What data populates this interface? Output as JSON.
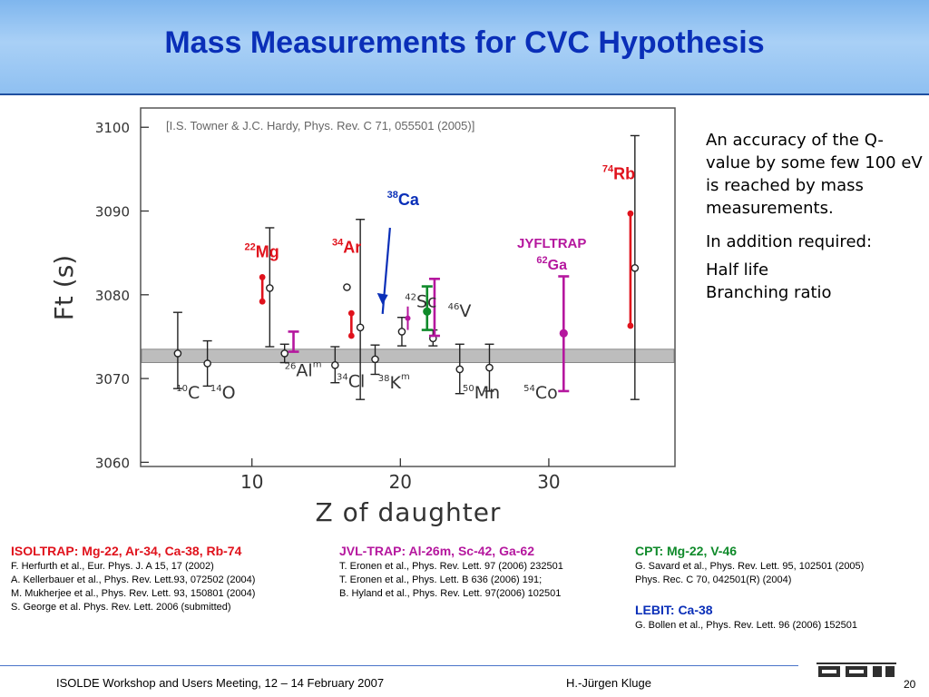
{
  "title": "Mass Measurements for CVC Hypothesis",
  "chart_data": {
    "type": "scatter",
    "citation": "[I.S. Towner & J.C. Hardy, Phys. Rev. C 71, 055501 (2005)]",
    "xlabel": "Z of daughter",
    "ylabel": "Ft (s)",
    "xlim": [
      2.5,
      38.5
    ],
    "ylim": [
      3059.5,
      3102.3
    ],
    "xticks": [
      10,
      20,
      30
    ],
    "yticks": [
      3060,
      3070,
      3080,
      3090,
      3100
    ],
    "band": {
      "y_low": 3071.9,
      "y_high": 3073.5,
      "color": "#bdbdbd"
    },
    "points": [
      {
        "x": 5,
        "y": 3073,
        "err_low": 3068.8,
        "err_high": 3077.9,
        "color": "#000000",
        "style": "open"
      },
      {
        "x": 7,
        "y": 3071.8,
        "err_low": 3069.1,
        "err_high": 3074.5,
        "color": "#000000",
        "style": "open"
      },
      {
        "x": 11.2,
        "y": 3080.8,
        "err_low": 3073.8,
        "err_high": 3088.0,
        "color": "#000000",
        "style": "open"
      },
      {
        "x": 12.2,
        "y": 3073,
        "err_low": 3071.9,
        "err_high": 3074.1,
        "color": "#000000",
        "style": "open"
      },
      {
        "x": 15.6,
        "y": 3071.6,
        "err_low": 3069.5,
        "err_high": 3073.8,
        "color": "#000000",
        "style": "open"
      },
      {
        "x": 16.4,
        "y": 3080.9,
        "err_low": 3080.9,
        "err_high": 3080.9,
        "color": "#000000",
        "style": "open"
      },
      {
        "x": 17.3,
        "y": 3076.1,
        "err_low": 3067.5,
        "err_high": 3089.0,
        "color": "#000000",
        "style": "open"
      },
      {
        "x": 18.3,
        "y": 3072.3,
        "err_low": 3070.5,
        "err_high": 3074.0,
        "color": "#000000",
        "style": "open"
      },
      {
        "x": 20.1,
        "y": 3075.6,
        "err_low": 3073.9,
        "err_high": 3077.3,
        "color": "#000000",
        "style": "open"
      },
      {
        "x": 22.2,
        "y": 3074.8,
        "err_low": 3073.9,
        "err_high": 3075.8,
        "color": "#000000",
        "style": "open"
      },
      {
        "x": 24,
        "y": 3071.1,
        "err_low": 3068.2,
        "err_high": 3074.1,
        "color": "#000000",
        "style": "open"
      },
      {
        "x": 26,
        "y": 3071.3,
        "err_low": 3068.5,
        "err_high": 3074.1,
        "color": "#000000",
        "style": "open"
      },
      {
        "x": 35.8,
        "y": 3083.2,
        "err_low": 3067.5,
        "err_high": 3099.0,
        "color": "#000000",
        "style": "open"
      },
      {
        "x": 10.7,
        "y": 3080.9,
        "err_low": 3079.2,
        "err_high": 3082.1,
        "color": "#e0121c",
        "style": "bar"
      },
      {
        "x": 16.7,
        "y": 3076.5,
        "err_low": 3075.1,
        "err_high": 3077.8,
        "color": "#e0121c",
        "style": "bar"
      },
      {
        "x": 35.5,
        "y": 3083.1,
        "err_low": 3076.3,
        "err_high": 3089.7,
        "color": "#e0121c",
        "style": "bar"
      },
      {
        "x": 12.8,
        "y": 3074.3,
        "err_low": 3073.2,
        "err_high": 3075.6,
        "color": "#b5179e",
        "style": "bar"
      },
      {
        "x": 22.3,
        "y": 3078.9,
        "err_low": 3075.1,
        "err_high": 3081.9,
        "color": "#b5179e",
        "style": "bar"
      },
      {
        "x": 31,
        "y": 3075.4,
        "err_low": 3068.5,
        "err_high": 3082.2,
        "color": "#b5179e",
        "style": "bar",
        "marker": true
      },
      {
        "x": 20.5,
        "y": 3077.2,
        "err_low": 3075.8,
        "err_high": 3078.6,
        "color": "#b5179e",
        "style": "dot"
      },
      {
        "x": 21.8,
        "y": 3078,
        "err_low": 3075.8,
        "err_high": 3081.0,
        "color": "#0f8a2a",
        "style": "bar",
        "marker": true
      }
    ],
    "nucleus_labels": [
      {
        "mass": "10",
        "sym": "C",
        "iso": "",
        "x": 4.9,
        "y": 3067.6
      },
      {
        "mass": "14",
        "sym": "O",
        "iso": "",
        "x": 7.2,
        "y": 3067.6
      },
      {
        "mass": "26",
        "sym": "Al",
        "iso": "m",
        "x": 12.2,
        "y": 3070.3
      },
      {
        "mass": "34",
        "sym": "Cl",
        "iso": "",
        "x": 15.7,
        "y": 3069.0
      },
      {
        "mass": "38",
        "sym": "K",
        "iso": "m",
        "x": 18.5,
        "y": 3068.8
      },
      {
        "mass": "42",
        "sym": "Sc",
        "iso": "",
        "x": 20.3,
        "y": 3078.5
      },
      {
        "mass": "46",
        "sym": "V",
        "iso": "",
        "x": 23.2,
        "y": 3077.4
      },
      {
        "mass": "50",
        "sym": "Mn",
        "iso": "",
        "x": 24.2,
        "y": 3067.6
      },
      {
        "mass": "54",
        "sym": "Co",
        "iso": "",
        "x": 28.3,
        "y": 3067.6
      }
    ],
    "highlight_labels": [
      {
        "mass": "22",
        "sym": "Mg",
        "x": 9.5,
        "y": 3084.5,
        "color": "#e0121c"
      },
      {
        "mass": "34",
        "sym": "Ar",
        "x": 15.4,
        "y": 3085.0,
        "color": "#e0121c"
      },
      {
        "mass": "38",
        "sym": "Ca",
        "x": 19.1,
        "y": 3090.7,
        "color": "#0a2fb8"
      },
      {
        "mass": "74",
        "sym": "Rb",
        "x": 33.6,
        "y": 3093.8,
        "color": "#e0121c"
      }
    ],
    "jyfltrap": {
      "label": "JYFLTRAP",
      "mass": "62",
      "sym": "Ga",
      "x": 30.2,
      "y_label": 3085.6,
      "y_iso": 3083.0,
      "color": "#b5179e"
    },
    "arrow": {
      "x_from": 19.3,
      "y_from": 3088.0,
      "x_to": 18.8,
      "y_to": 3078.8,
      "color": "#0a2fb8"
    }
  },
  "notes": {
    "accuracy": "An accuracy of the Q-value by some few 100 eV is reached by mass measurements.",
    "required": "In addition required:",
    "half_life": "Half life",
    "branching": "Branching ratio"
  },
  "refs": {
    "isoltrap": {
      "head": "ISOLTRAP: Mg-22, Ar-34, Ca-38, Rb-74",
      "lines": [
        "F. Herfurth et al., Eur. Phys. J. A 15, 17 (2002)",
        "A. Kellerbauer et al., Phys. Rev. Lett.93, 072502 (2004)",
        "M. Mukherjee et al., Phys. Rev. Lett. 93, 150801 (2004)",
        "S. George et al. Phys. Rev. Lett. 2006 (submitted)"
      ]
    },
    "jvltrap": {
      "head": "JVL-TRAP: Al-26m, Sc-42, Ga-62",
      "lines": [
        "T. Eronen et al., Phys. Rev. Lett. 97 (2006) 232501",
        "T. Eronen et al., Phys. Lett. B 636 (2006) 191;",
        "B. Hyland et al., Phys. Rev. Lett. 97(2006) 102501"
      ]
    },
    "cpt": {
      "head": "CPT: Mg-22, V-46",
      "lines": [
        "G. Savard et al., Phys. Rev. Lett. 95, 102501 (2005)",
        "Phys.  Rec. C 70, 042501(R) (2004)"
      ]
    },
    "lebit": {
      "head": "LEBIT: Ca-38",
      "lines": [
        "G. Bollen et al., Phys. Rev. Lett. 96 (2006) 152501"
      ]
    }
  },
  "footer": {
    "event": "ISOLDE Workshop and Users Meeting, 12 – 14  February 2007",
    "author": "H.-Jürgen Kluge",
    "page": "20",
    "logo": "GSI"
  }
}
